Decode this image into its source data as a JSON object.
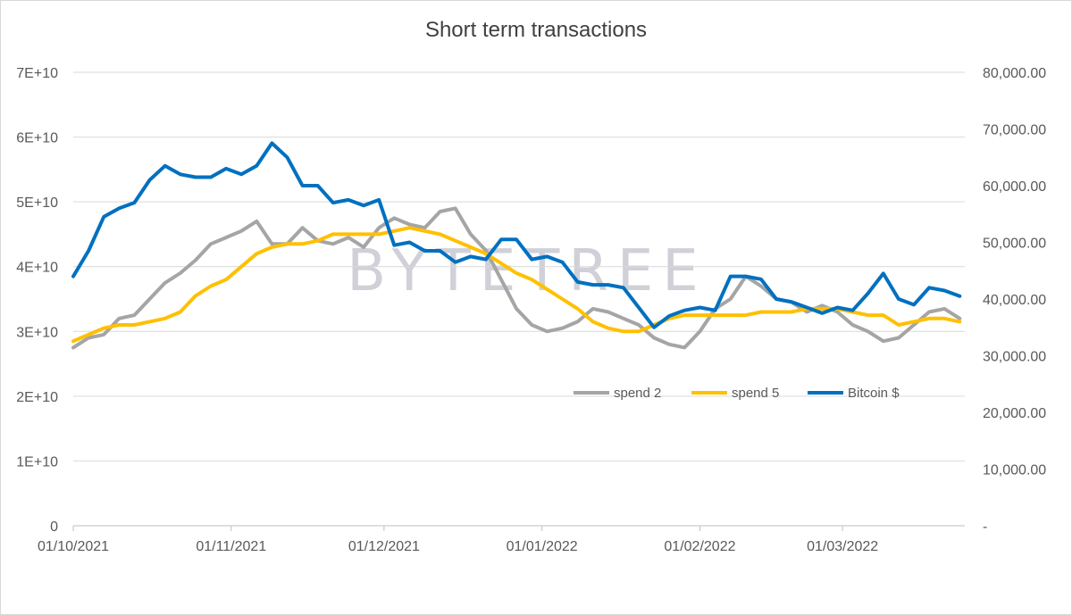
{
  "title": "Short term transactions",
  "watermark": "BYTETREE",
  "chart_data": {
    "type": "line",
    "title": "Short term transactions",
    "x_range": [
      "2021-10-01",
      "2022-03-25"
    ],
    "x_tick_labels": [
      "01/10/2021",
      "01/11/2021",
      "01/12/2021",
      "01/01/2022",
      "01/02/2022",
      "01/03/2022"
    ],
    "x_tick_dates": [
      "2021-10-01",
      "2021-11-01",
      "2021-12-01",
      "2022-01-01",
      "2022-02-01",
      "2022-03-01"
    ],
    "y_left": {
      "min": 0,
      "max": 70000000000,
      "ticks": [
        0,
        10000000000,
        20000000000,
        30000000000,
        40000000000,
        50000000000,
        60000000000,
        70000000000
      ],
      "tick_labels": [
        "0",
        "1E+10",
        "2E+10",
        "3E+10",
        "4E+10",
        "5E+10",
        "6E+10",
        "7E+10"
      ]
    },
    "y_right": {
      "min": 0,
      "max": 80000,
      "ticks": [
        0,
        10000,
        20000,
        30000,
        40000,
        50000,
        60000,
        70000,
        80000
      ],
      "tick_labels": [
        "-",
        "10,000.00",
        "20,000.00",
        "30,000.00",
        "40,000.00",
        "50,000.00",
        "60,000.00",
        "70,000.00",
        "80,000.00"
      ]
    },
    "grid": "horizontal",
    "legend_position": "lower-right, inside plot",
    "series": [
      {
        "name": "spend 2",
        "axis": "left",
        "color": "#a5a5a5",
        "x": [
          "2021-10-01",
          "2021-10-04",
          "2021-10-07",
          "2021-10-10",
          "2021-10-13",
          "2021-10-16",
          "2021-10-19",
          "2021-10-22",
          "2021-10-25",
          "2021-10-28",
          "2021-10-31",
          "2021-11-03",
          "2021-11-06",
          "2021-11-09",
          "2021-11-12",
          "2021-11-15",
          "2021-11-18",
          "2021-11-21",
          "2021-11-24",
          "2021-11-27",
          "2021-11-30",
          "2021-12-03",
          "2021-12-06",
          "2021-12-09",
          "2021-12-12",
          "2021-12-15",
          "2021-12-18",
          "2021-12-21",
          "2021-12-24",
          "2021-12-27",
          "2021-12-30",
          "2022-01-02",
          "2022-01-05",
          "2022-01-08",
          "2022-01-11",
          "2022-01-14",
          "2022-01-17",
          "2022-01-20",
          "2022-01-23",
          "2022-01-26",
          "2022-01-29",
          "2022-02-01",
          "2022-02-04",
          "2022-02-07",
          "2022-02-10",
          "2022-02-13",
          "2022-02-16",
          "2022-02-19",
          "2022-02-22",
          "2022-02-25",
          "2022-02-28",
          "2022-03-03",
          "2022-03-06",
          "2022-03-09",
          "2022-03-12",
          "2022-03-15",
          "2022-03-18",
          "2022-03-21",
          "2022-03-24"
        ],
        "y": [
          27500000000,
          29000000000,
          29500000000,
          32000000000,
          32500000000,
          35000000000,
          37500000000,
          39000000000,
          41000000000,
          43500000000,
          44500000000,
          45500000000,
          47000000000,
          43500000000,
          43500000000,
          46000000000,
          44000000000,
          43500000000,
          44500000000,
          43000000000,
          46000000000,
          47500000000,
          46500000000,
          46000000000,
          48500000000,
          49000000000,
          45000000000,
          42500000000,
          38000000000,
          33500000000,
          31000000000,
          30000000000,
          30500000000,
          31500000000,
          33500000000,
          33000000000,
          32000000000,
          31000000000,
          29000000000,
          28000000000,
          27500000000,
          30000000000,
          33500000000,
          35000000000,
          38500000000,
          37000000000,
          35000000000,
          34500000000,
          33000000000,
          34000000000,
          33000000000,
          31000000000,
          30000000000,
          28500000000,
          29000000000,
          31000000000,
          33000000000,
          33500000000,
          32000000000
        ]
      },
      {
        "name": "spend 5",
        "axis": "left",
        "color": "#ffc000",
        "x": [
          "2021-10-01",
          "2021-10-04",
          "2021-10-07",
          "2021-10-10",
          "2021-10-13",
          "2021-10-16",
          "2021-10-19",
          "2021-10-22",
          "2021-10-25",
          "2021-10-28",
          "2021-10-31",
          "2021-11-03",
          "2021-11-06",
          "2021-11-09",
          "2021-11-12",
          "2021-11-15",
          "2021-11-18",
          "2021-11-21",
          "2021-11-24",
          "2021-11-27",
          "2021-11-30",
          "2021-12-03",
          "2021-12-06",
          "2021-12-09",
          "2021-12-12",
          "2021-12-15",
          "2021-12-18",
          "2021-12-21",
          "2021-12-24",
          "2021-12-27",
          "2021-12-30",
          "2022-01-02",
          "2022-01-05",
          "2022-01-08",
          "2022-01-11",
          "2022-01-14",
          "2022-01-17",
          "2022-01-20",
          "2022-01-23",
          "2022-01-26",
          "2022-01-29",
          "2022-02-01",
          "2022-02-04",
          "2022-02-07",
          "2022-02-10",
          "2022-02-13",
          "2022-02-16",
          "2022-02-19",
          "2022-02-22",
          "2022-02-25",
          "2022-02-28",
          "2022-03-03",
          "2022-03-06",
          "2022-03-09",
          "2022-03-12",
          "2022-03-15",
          "2022-03-18",
          "2022-03-21",
          "2022-03-24"
        ],
        "y": [
          28500000000,
          29500000000,
          30500000000,
          31000000000,
          31000000000,
          31500000000,
          32000000000,
          33000000000,
          35500000000,
          37000000000,
          38000000000,
          40000000000,
          42000000000,
          43000000000,
          43500000000,
          43500000000,
          44000000000,
          45000000000,
          45000000000,
          45000000000,
          45000000000,
          45500000000,
          46000000000,
          45500000000,
          45000000000,
          44000000000,
          43000000000,
          42000000000,
          40500000000,
          39000000000,
          38000000000,
          36500000000,
          35000000000,
          33500000000,
          31500000000,
          30500000000,
          30000000000,
          30000000000,
          31000000000,
          32000000000,
          32500000000,
          32500000000,
          32500000000,
          32500000000,
          32500000000,
          33000000000,
          33000000000,
          33000000000,
          33500000000,
          33500000000,
          33500000000,
          33000000000,
          32500000000,
          32500000000,
          31000000000,
          31500000000,
          32000000000,
          32000000000,
          31500000000
        ]
      },
      {
        "name": "Bitcoin $",
        "axis": "right",
        "color": "#0070c0",
        "x": [
          "2021-10-01",
          "2021-10-04",
          "2021-10-07",
          "2021-10-10",
          "2021-10-13",
          "2021-10-16",
          "2021-10-19",
          "2021-10-22",
          "2021-10-25",
          "2021-10-28",
          "2021-10-31",
          "2021-11-03",
          "2021-11-06",
          "2021-11-09",
          "2021-11-12",
          "2021-11-15",
          "2021-11-18",
          "2021-11-21",
          "2021-11-24",
          "2021-11-27",
          "2021-11-30",
          "2021-12-03",
          "2021-12-06",
          "2021-12-09",
          "2021-12-12",
          "2021-12-15",
          "2021-12-18",
          "2021-12-21",
          "2021-12-24",
          "2021-12-27",
          "2021-12-30",
          "2022-01-02",
          "2022-01-05",
          "2022-01-08",
          "2022-01-11",
          "2022-01-14",
          "2022-01-17",
          "2022-01-20",
          "2022-01-23",
          "2022-01-26",
          "2022-01-29",
          "2022-02-01",
          "2022-02-04",
          "2022-02-07",
          "2022-02-10",
          "2022-02-13",
          "2022-02-16",
          "2022-02-19",
          "2022-02-22",
          "2022-02-25",
          "2022-02-28",
          "2022-03-03",
          "2022-03-06",
          "2022-03-09",
          "2022-03-12",
          "2022-03-15",
          "2022-03-18",
          "2022-03-21",
          "2022-03-24"
        ],
        "y": [
          44000,
          48500,
          54500,
          56000,
          57000,
          61000,
          63500,
          62000,
          61500,
          61500,
          63000,
          62000,
          63500,
          67500,
          65000,
          60000,
          60000,
          57000,
          57500,
          56500,
          57500,
          49500,
          50000,
          48500,
          48500,
          46500,
          47500,
          47000,
          50500,
          50500,
          47000,
          47500,
          46500,
          43000,
          42500,
          42500,
          42000,
          38500,
          35000,
          37000,
          38000,
          38500,
          38000,
          44000,
          44000,
          43500,
          40000,
          39500,
          38500,
          37500,
          38500,
          38000,
          41000,
          44500,
          40000,
          39000,
          42000,
          41500,
          40500
        ]
      }
    ]
  }
}
